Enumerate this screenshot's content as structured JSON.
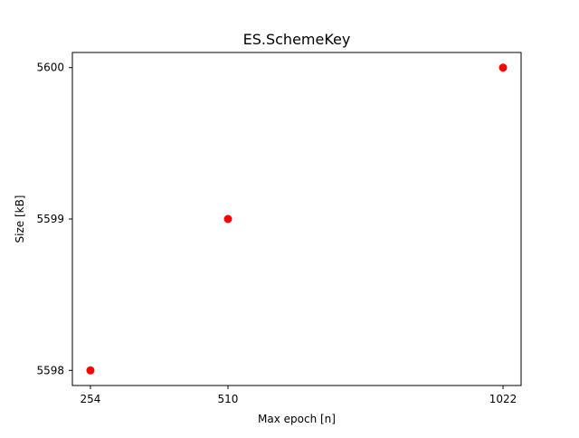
{
  "chart_data": {
    "type": "scatter",
    "title": "ES.SchemeKey",
    "xlabel": "Max epoch [n]",
    "ylabel": "Size [kB]",
    "x": [
      254,
      510,
      1022
    ],
    "y": [
      5598,
      5599,
      5600
    ],
    "xticks": [
      254,
      510,
      1022
    ],
    "yticks": [
      5598,
      5599,
      5600
    ],
    "xlim": [
      220.4,
      1055.6
    ],
    "ylim": [
      5597.9,
      5600.1
    ],
    "grid": false,
    "marker_color": "#ff0000"
  }
}
